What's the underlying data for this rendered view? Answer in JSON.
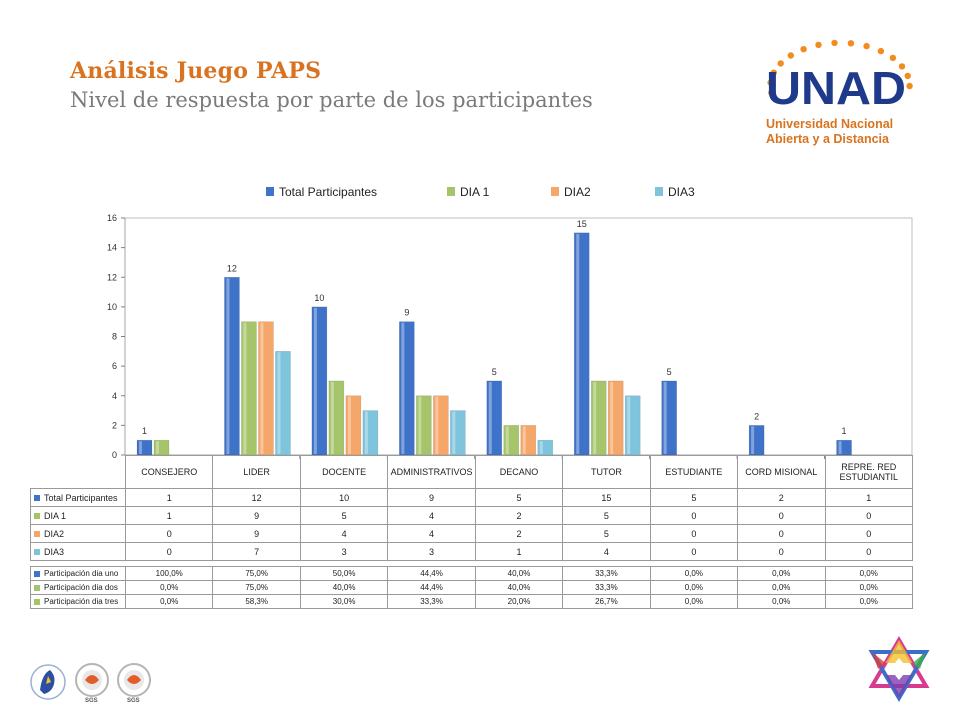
{
  "header": {
    "title": "Análisis Juego PAPS",
    "subtitle": "Nivel de respuesta por parte de los participantes"
  },
  "logo": {
    "acronym": "UNAD",
    "name_line1": "Universidad Nacional",
    "name_line2": "Abierta y a Distancia",
    "colors": {
      "primary": "#1f3a8a",
      "accent": "#f28c1e",
      "text": "#d9731f"
    }
  },
  "chart_data": {
    "type": "bar",
    "categories": [
      "CONSEJERO",
      "LIDER",
      "DOCENTE",
      "ADMINISTRATIVOS",
      "DECANO",
      "TUTOR",
      "ESTUDIANTE",
      "CORD MISIONAL",
      "REPRE. RED ESTUDIANTIL"
    ],
    "series": [
      {
        "name": "Total Participantes",
        "values": [
          1,
          12,
          10,
          9,
          5,
          15,
          5,
          2,
          1
        ],
        "color": "#3f73c9"
      },
      {
        "name": "DIA 1",
        "values": [
          1,
          9,
          5,
          4,
          2,
          5,
          0,
          0,
          0
        ],
        "color": "#a6c46a"
      },
      {
        "name": "DIA2",
        "values": [
          0,
          9,
          4,
          4,
          2,
          5,
          0,
          0,
          0
        ],
        "color": "#f5a669"
      },
      {
        "name": "DIA3",
        "values": [
          0,
          7,
          3,
          3,
          1,
          4,
          0,
          0,
          0
        ],
        "color": "#7ec4dc"
      }
    ],
    "data_labels_series": "Total Participantes",
    "ylim": [
      0,
      16
    ],
    "yticks": [
      0,
      2,
      4,
      6,
      8,
      10,
      12,
      14,
      16
    ],
    "legend": "top",
    "grid": false
  },
  "participation_table": {
    "rows": [
      {
        "name": "Participación dia uno",
        "color": "#3f73c9",
        "values": [
          "100,0%",
          "75,0%",
          "50,0%",
          "44,4%",
          "40,0%",
          "33,3%",
          "0,0%",
          "0,0%",
          "0,0%"
        ]
      },
      {
        "name": "Participación dia dos",
        "color": "#a6c46a",
        "values": [
          "0,0%",
          "75,0%",
          "40,0%",
          "44,4%",
          "40,0%",
          "33,3%",
          "0,0%",
          "0,0%",
          "0,0%"
        ]
      },
      {
        "name": "Participación dia tres",
        "color": "#a6c46a",
        "values": [
          "0,0%",
          "58,3%",
          "30,0%",
          "33,3%",
          "20,0%",
          "26,7%",
          "0,0%",
          "0,0%",
          "0,0%"
        ]
      }
    ]
  },
  "footer": {
    "cert_label": "SGS"
  }
}
